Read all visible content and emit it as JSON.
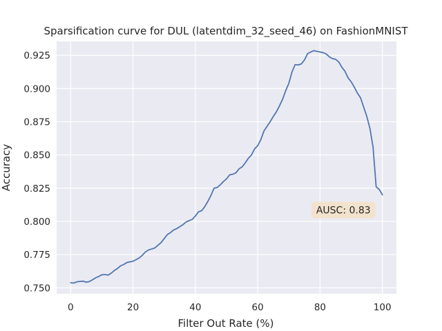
{
  "chart_data": {
    "type": "line",
    "title": "Sparsification curve for DUL (latentdim_32_seed_46) on FashionMNIST",
    "xlabel": "Filter Out Rate (%)",
    "ylabel": "Accuracy",
    "xlim": [
      -4.5,
      104.5
    ],
    "ylim": [
      0.7455,
      0.9355
    ],
    "xticks": [
      0,
      20,
      40,
      60,
      80,
      100
    ],
    "xtick_labels": [
      "0",
      "20",
      "40",
      "60",
      "80",
      "100"
    ],
    "yticks": [
      0.75,
      0.775,
      0.8,
      0.825,
      0.85,
      0.875,
      0.9,
      0.925
    ],
    "ytick_labels": [
      "0.750",
      "0.775",
      "0.800",
      "0.825",
      "0.850",
      "0.875",
      "0.900",
      "0.925"
    ],
    "grid": true,
    "background": "#eaeaf2",
    "line_color": "#4c72b0",
    "annotation": {
      "text": "AUSC: 0.83",
      "x": 87.5,
      "y": 0.8085,
      "box_color": "#f3e3cd"
    },
    "series": [
      {
        "x": [
          0,
          1,
          2,
          3,
          4,
          5,
          6,
          7,
          8,
          9,
          10,
          11,
          12,
          13,
          14,
          15,
          16,
          17,
          18,
          19,
          20,
          21,
          22,
          23,
          24,
          25,
          26,
          27,
          28,
          29,
          30,
          31,
          32,
          33,
          34,
          35,
          36,
          37,
          38,
          39,
          40,
          41,
          42,
          43,
          44,
          45,
          46,
          47,
          48,
          49,
          50,
          51,
          52,
          53,
          54,
          55,
          56,
          57,
          58,
          59,
          60,
          61,
          62,
          63,
          64,
          65,
          66,
          67,
          68,
          69,
          70,
          71,
          72,
          73,
          74,
          75,
          76,
          77,
          78,
          79,
          80,
          81,
          82,
          83,
          84,
          85,
          86,
          87,
          88,
          89,
          90,
          91,
          92,
          93,
          94,
          95,
          96,
          97,
          98,
          99,
          100
        ],
        "y": [
          0.7538,
          0.7536,
          0.7545,
          0.7548,
          0.755,
          0.7542,
          0.7547,
          0.756,
          0.7575,
          0.7585,
          0.7598,
          0.76,
          0.7595,
          0.761,
          0.763,
          0.7645,
          0.7665,
          0.7675,
          0.769,
          0.7695,
          0.77,
          0.7712,
          0.7725,
          0.7745,
          0.777,
          0.7785,
          0.7792,
          0.78,
          0.782,
          0.784,
          0.787,
          0.79,
          0.7915,
          0.7935,
          0.7945,
          0.796,
          0.7975,
          0.7995,
          0.8005,
          0.8015,
          0.804,
          0.8072,
          0.808,
          0.811,
          0.815,
          0.8195,
          0.825,
          0.8255,
          0.8275,
          0.83,
          0.832,
          0.835,
          0.8355,
          0.8365,
          0.8395,
          0.841,
          0.844,
          0.8475,
          0.85,
          0.8545,
          0.857,
          0.8615,
          0.868,
          0.8715,
          0.875,
          0.879,
          0.8825,
          0.887,
          0.892,
          0.8985,
          0.904,
          0.9125,
          0.918,
          0.9178,
          0.9185,
          0.9215,
          0.9262,
          0.9275,
          0.9285,
          0.928,
          0.9275,
          0.927,
          0.926,
          0.9238,
          0.9225,
          0.922,
          0.92,
          0.916,
          0.913,
          0.908,
          0.905,
          0.901,
          0.8965,
          0.893,
          0.886,
          0.879,
          0.87,
          0.856,
          0.826,
          0.824,
          0.82
        ]
      }
    ]
  }
}
